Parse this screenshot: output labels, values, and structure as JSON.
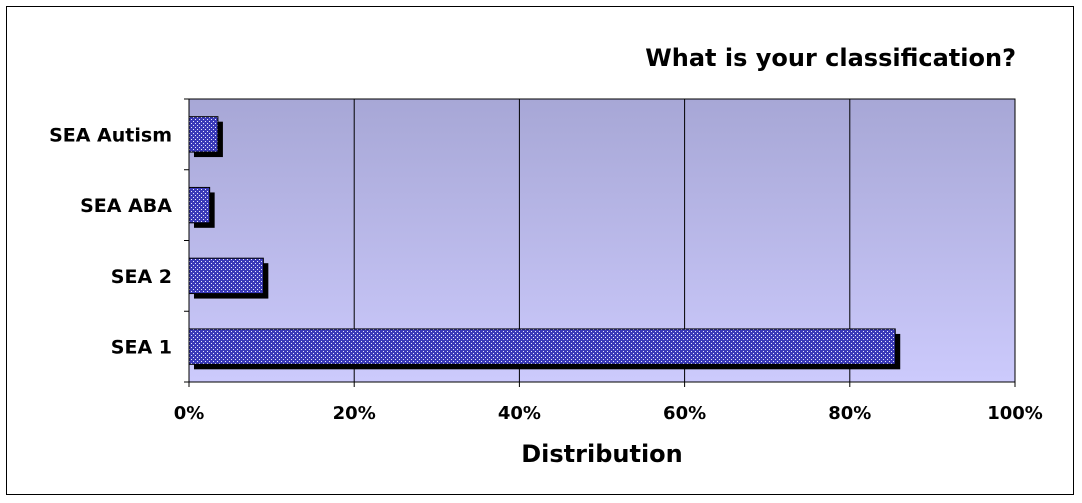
{
  "chart_data": {
    "type": "bar",
    "orientation": "horizontal",
    "title": "What is your classification?",
    "xlabel": "Distribution",
    "ylabel": "",
    "categories": [
      "SEA Autism",
      "SEA ABA",
      "SEA 2",
      "SEA 1"
    ],
    "values": [
      3.5,
      2.5,
      9,
      85.5
    ],
    "value_unit": "%",
    "xlim": [
      0,
      100
    ],
    "x_ticks": [
      "0%",
      "20%",
      "40%",
      "60%",
      "80%",
      "100%"
    ],
    "x_tick_values": [
      0,
      20,
      40,
      60,
      80,
      100
    ],
    "grid": "vertical",
    "legend": "none",
    "colors": {
      "bar_fill": "#3a3ab8",
      "bar_dots": "#e8e8ff",
      "bar_shadow": "#000000",
      "plot_bg_top": "#a7a7d6",
      "plot_bg_bottom": "#cccafc",
      "gridline": "#000000"
    }
  }
}
